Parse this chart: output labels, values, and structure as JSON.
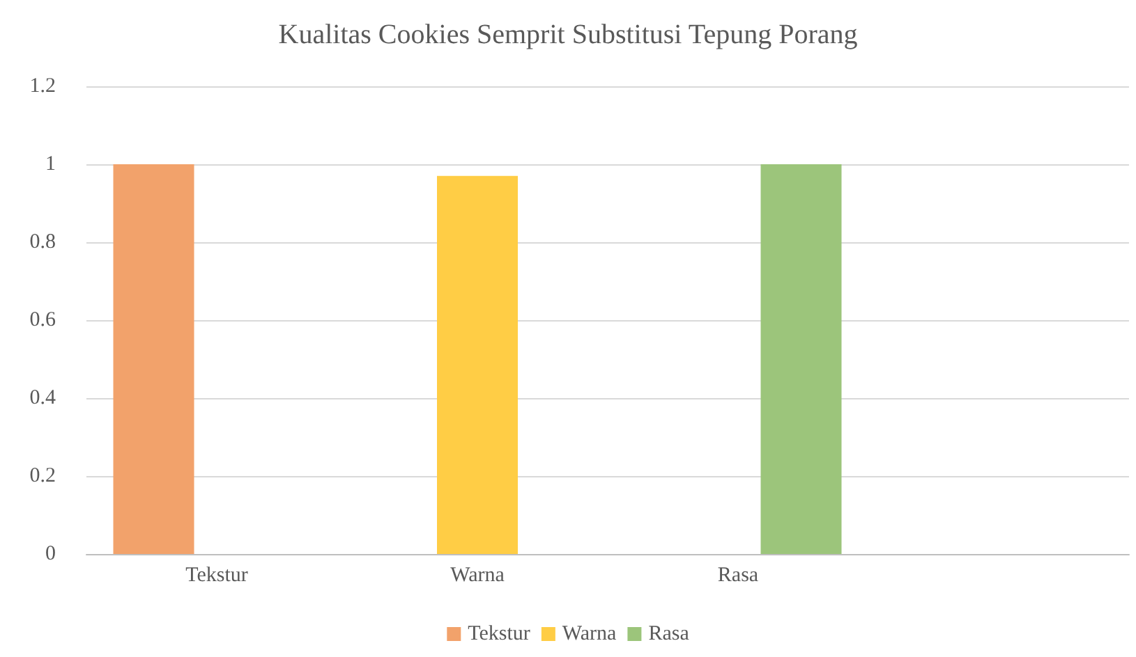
{
  "chart_data": {
    "type": "bar",
    "title": "Kualitas Cookies Semprit Substitusi Tepung Porang",
    "categories": [
      "Tekstur",
      "Warna",
      "Rasa",
      null
    ],
    "series": [
      {
        "name": "Tekstur",
        "color": "#f2a26b",
        "values": [
          1,
          null,
          null,
          null
        ]
      },
      {
        "name": "Warna",
        "color": "#ffcd45",
        "values": [
          null,
          0.97,
          null,
          null
        ]
      },
      {
        "name": "Rasa",
        "color": "#9cc57b",
        "values": [
          null,
          null,
          1,
          null
        ]
      }
    ],
    "ylim": [
      0,
      1.2
    ],
    "yticks": [
      0,
      0.2,
      0.4,
      0.6,
      0.8,
      1,
      1.2
    ],
    "grid": "y",
    "legend": "bottom"
  }
}
